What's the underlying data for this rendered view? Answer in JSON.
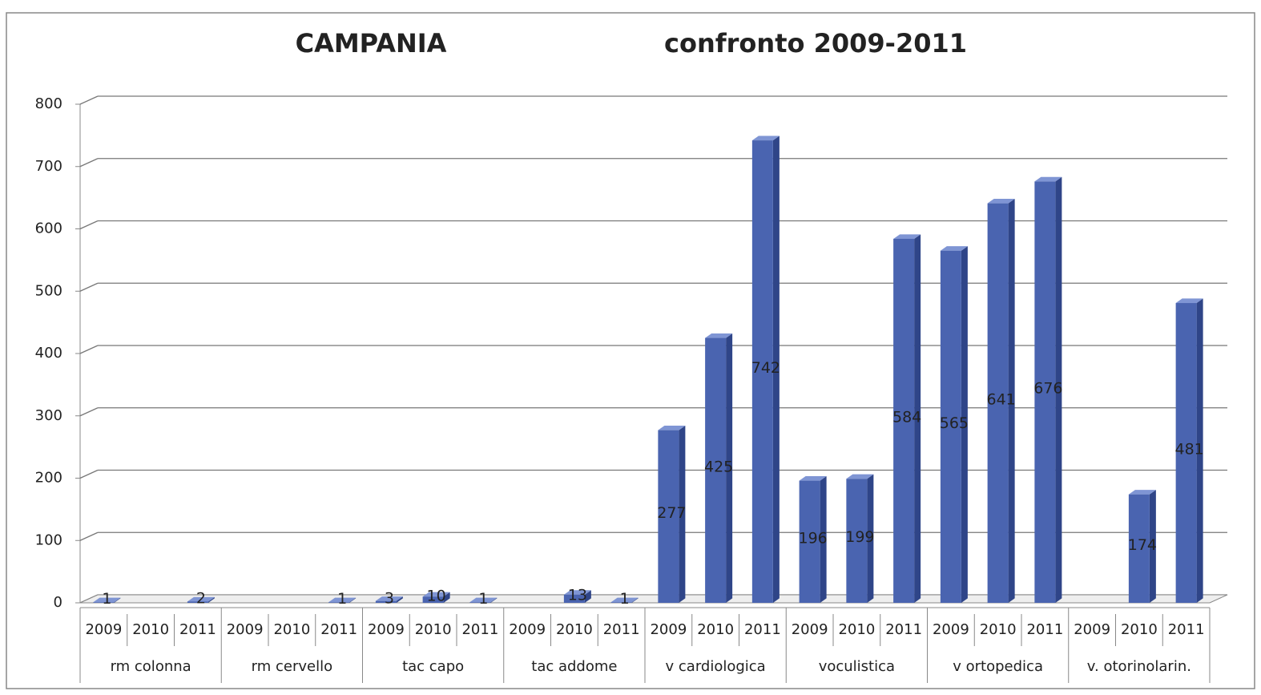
{
  "chart_data": {
    "type": "bar",
    "title": "CAMPANIA",
    "subtitle": "confronto 2009-2011",
    "groups": [
      {
        "label": "rm colonna",
        "categories": [
          "2009",
          "2010",
          "2011"
        ],
        "values": [
          1,
          null,
          2
        ]
      },
      {
        "label": "rm cervello",
        "categories": [
          "2009",
          "2010",
          "2011"
        ],
        "values": [
          null,
          null,
          1
        ]
      },
      {
        "label": "tac capo",
        "categories": [
          "2009",
          "2010",
          "2011"
        ],
        "values": [
          3,
          10,
          1
        ]
      },
      {
        "label": "tac addome",
        "categories": [
          "2009",
          "2010",
          "2011"
        ],
        "values": [
          null,
          13,
          1
        ]
      },
      {
        "label": "v cardiologica",
        "categories": [
          "2009",
          "2010",
          "2011"
        ],
        "values": [
          277,
          425,
          742
        ]
      },
      {
        "label": "voculistica",
        "categories": [
          "2009",
          "2010",
          "2011"
        ],
        "values": [
          196,
          199,
          584
        ]
      },
      {
        "label": "v ortopedica",
        "categories": [
          "2009",
          "2010",
          "2011"
        ],
        "values": [
          565,
          641,
          676
        ]
      },
      {
        "label": "v. otorinolarin.",
        "categories": [
          "2009",
          "2010",
          "2011"
        ],
        "values": [
          null,
          174,
          481
        ]
      }
    ],
    "color": "#4a64b0",
    "ylim": [
      0,
      800
    ],
    "yticks": [
      0,
      100,
      200,
      300,
      400,
      500,
      600,
      700,
      800
    ],
    "grid": true
  }
}
